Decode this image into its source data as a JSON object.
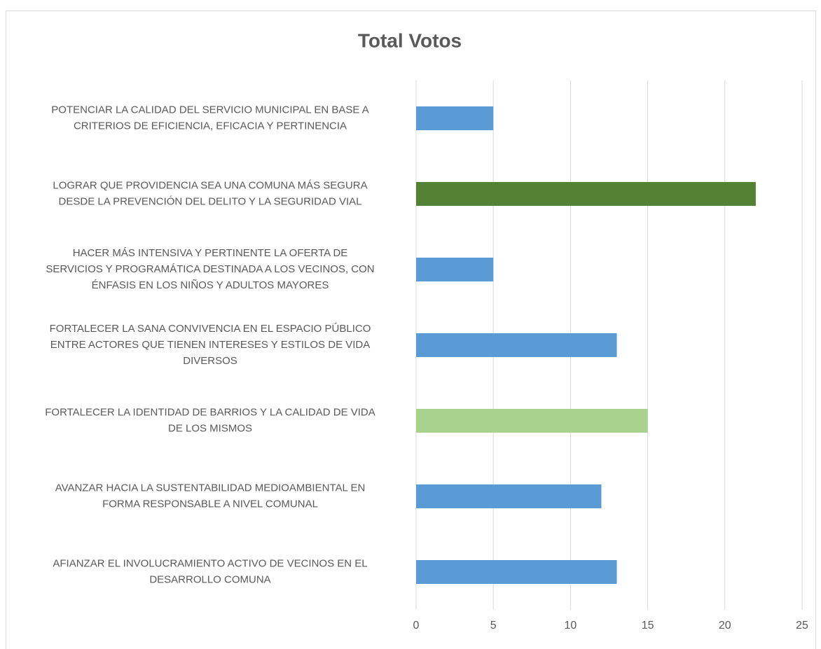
{
  "chart_data": {
    "type": "barh",
    "title": "Total Votos",
    "categories": [
      [
        "POTENCIAR LA CALIDAD DEL SERVICIO MUNICIPAL EN BASE A",
        "CRITERIOS DE EFICIENCIA, EFICACIA Y PERTINENCIA"
      ],
      [
        "LOGRAR QUE PROVIDENCIA SEA UNA COMUNA MÁS SEGURA",
        "DESDE LA PREVENCIÓN DEL DELITO Y LA SEGURIDAD VIAL"
      ],
      [
        "HACER MÁS INTENSIVA Y PERTINENTE LA OFERTA DE",
        "SERVICIOS Y PROGRAMÁTICA DESTINADA A LOS VECINOS, CON",
        "ÉNFASIS EN LOS NIÑOS Y ADULTOS MAYORES"
      ],
      [
        "FORTALECER LA SANA CONVIVENCIA EN EL ESPACIO PÚBLICO",
        "ENTRE ACTORES QUE TIENEN INTERESES Y ESTILOS DE VIDA",
        "DIVERSOS"
      ],
      [
        "FORTALECER LA IDENTIDAD DE BARRIOS Y LA CALIDAD DE VIDA",
        "DE LOS MISMOS"
      ],
      [
        "AVANZAR HACIA LA SUSTENTABILIDAD MEDIOAMBIENTAL EN",
        "FORMA RESPONSABLE A NIVEL COMUNAL"
      ],
      [
        "AFIANZAR EL INVOLUCRAMIENTO ACTIVO DE VECINOS EN EL",
        "DESARROLLO COMUNA"
      ]
    ],
    "values": [
      5,
      22,
      5,
      13,
      15,
      12,
      13
    ],
    "colors": [
      "#5b9bd5",
      "#548235",
      "#5b9bd5",
      "#5b9bd5",
      "#a9d18e",
      "#5b9bd5",
      "#5b9bd5"
    ],
    "xlim": [
      0,
      25
    ],
    "xticks": [
      0,
      5,
      10,
      15,
      20,
      25
    ],
    "grid": true
  }
}
